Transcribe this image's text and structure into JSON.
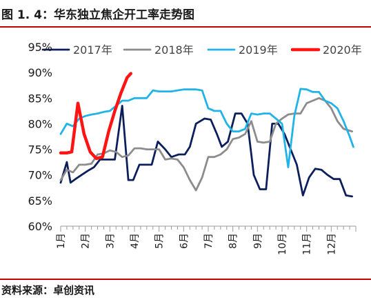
{
  "figure": {
    "title": "图 1. 4：华东独立焦企开工率走势图",
    "source": "资料来源：卓创资讯"
  },
  "chart_data": {
    "type": "line",
    "title": "",
    "xlabel": "",
    "ylabel": "",
    "x_unit": "month",
    "xlim": [
      1,
      13
    ],
    "ylim": [
      60,
      95
    ],
    "y_ticks": [
      60,
      65,
      70,
      75,
      80,
      85,
      90,
      95
    ],
    "y_tick_labels": [
      "60%",
      "65%",
      "70%",
      "75%",
      "80%",
      "85%",
      "90%",
      "95%"
    ],
    "x_ticks": [
      1,
      2,
      3,
      4,
      5,
      6,
      7,
      8,
      9,
      10,
      11,
      12
    ],
    "x_tick_labels": [
      "1月",
      "2月",
      "3月",
      "4月",
      "5月",
      "6月",
      "7月",
      "8月",
      "9月",
      "10月",
      "11月",
      "12月"
    ],
    "grid": false,
    "legend_position": "top",
    "series": [
      {
        "name": "2017年",
        "color": "#0b1f5c",
        "x": [
          1.0,
          1.25,
          1.4,
          1.6,
          1.85,
          2.1,
          2.35,
          2.6,
          2.85,
          3.2,
          3.5,
          3.75,
          3.95,
          4.2,
          4.45,
          4.7,
          4.95,
          5.25,
          5.5,
          5.8,
          6.05,
          6.25,
          6.5,
          6.85,
          7.1,
          7.35,
          7.55,
          7.8,
          8.1,
          8.35,
          8.6,
          8.85,
          9.1,
          9.35,
          9.6,
          9.85,
          10.1,
          10.35,
          10.6,
          10.85,
          11.1,
          11.35,
          11.6,
          11.85,
          12.1,
          12.35,
          12.6,
          12.85
        ],
        "y": [
          68.5,
          72.5,
          68.5,
          69.2,
          70.0,
          70.8,
          71.5,
          73.0,
          73.0,
          73.0,
          83.5,
          69.0,
          69.0,
          72.0,
          72.0,
          72.0,
          76.5,
          75.0,
          73.5,
          74.0,
          74.0,
          75.5,
          80.0,
          81.0,
          80.8,
          78.0,
          75.5,
          76.5,
          82.0,
          82.0,
          80.0,
          70.0,
          67.2,
          67.2,
          80.0,
          80.0,
          78.0,
          75.0,
          72.0,
          66.0,
          69.5,
          71.2,
          71.0,
          70.0,
          69.2,
          69.2,
          66.0,
          65.8
        ]
      },
      {
        "name": "2018年",
        "color": "#8c8c8c",
        "x": [
          1.0,
          1.25,
          1.5,
          1.75,
          2.0,
          2.25,
          2.5,
          2.75,
          3.0,
          3.25,
          3.5,
          3.75,
          4.0,
          4.25,
          4.5,
          4.75,
          5.0,
          5.25,
          5.5,
          5.75,
          6.0,
          6.25,
          6.5,
          6.75,
          7.0,
          7.25,
          7.5,
          7.75,
          8.0,
          8.25,
          8.5,
          8.75,
          9.0,
          9.25,
          9.5,
          9.75,
          10.0,
          10.25,
          10.5,
          10.75,
          11.0,
          11.25,
          11.5,
          11.75,
          12.0,
          12.25,
          12.5,
          12.85
        ],
        "y": [
          69.0,
          71.0,
          70.5,
          72.0,
          72.0,
          72.2,
          74.0,
          74.2,
          74.8,
          74.5,
          73.5,
          73.8,
          75.2,
          75.2,
          75.0,
          75.0,
          75.0,
          73.0,
          73.2,
          73.0,
          71.5,
          69.0,
          67.0,
          69.5,
          73.5,
          73.5,
          74.0,
          75.0,
          77.0,
          77.3,
          78.0,
          80.5,
          76.5,
          76.3,
          76.5,
          80.0,
          81.0,
          81.8,
          82.0,
          82.0,
          84.0,
          84.5,
          85.0,
          84.5,
          83.0,
          80.5,
          79.0,
          78.5
        ]
      },
      {
        "name": "2019年",
        "color": "#1fb3e8",
        "x": [
          1.0,
          1.25,
          1.5,
          1.75,
          2.0,
          2.25,
          2.5,
          2.75,
          3.0,
          3.25,
          3.5,
          3.75,
          4.0,
          4.25,
          4.5,
          4.75,
          5.0,
          5.25,
          5.5,
          5.75,
          6.0,
          6.25,
          6.5,
          6.75,
          7.0,
          7.25,
          7.5,
          7.75,
          8.0,
          8.25,
          8.5,
          8.75,
          9.0,
          9.25,
          9.5,
          9.75,
          10.0,
          10.25,
          10.5,
          10.75,
          11.0,
          11.25,
          11.5,
          11.75,
          12.0,
          12.25,
          12.5,
          12.75,
          12.9
        ],
        "y": [
          78.0,
          80.0,
          79.5,
          81.0,
          81.5,
          81.8,
          82.0,
          82.3,
          82.5,
          83.5,
          84.5,
          84.5,
          85.0,
          85.0,
          85.0,
          86.5,
          86.3,
          86.3,
          86.3,
          86.5,
          86.7,
          86.7,
          86.7,
          86.5,
          83.0,
          82.5,
          82.5,
          80.0,
          78.5,
          78.5,
          79.0,
          82.0,
          81.8,
          82.0,
          82.0,
          81.0,
          80.0,
          71.5,
          81.5,
          86.8,
          86.7,
          86.2,
          86.2,
          84.5,
          84.0,
          83.0,
          80.5,
          77.5,
          75.5
        ]
      },
      {
        "name": "2020年",
        "color": "#ff1414",
        "x": [
          1.0,
          1.25,
          1.45,
          1.7,
          1.95,
          2.2,
          2.45,
          2.7,
          2.95,
          3.2,
          3.45,
          3.7,
          3.85
        ],
        "y": [
          74.3,
          74.3,
          74.5,
          84.0,
          78.0,
          74.5,
          73.2,
          73.5,
          78.5,
          82.5,
          86.0,
          89.0,
          89.8
        ]
      }
    ]
  }
}
